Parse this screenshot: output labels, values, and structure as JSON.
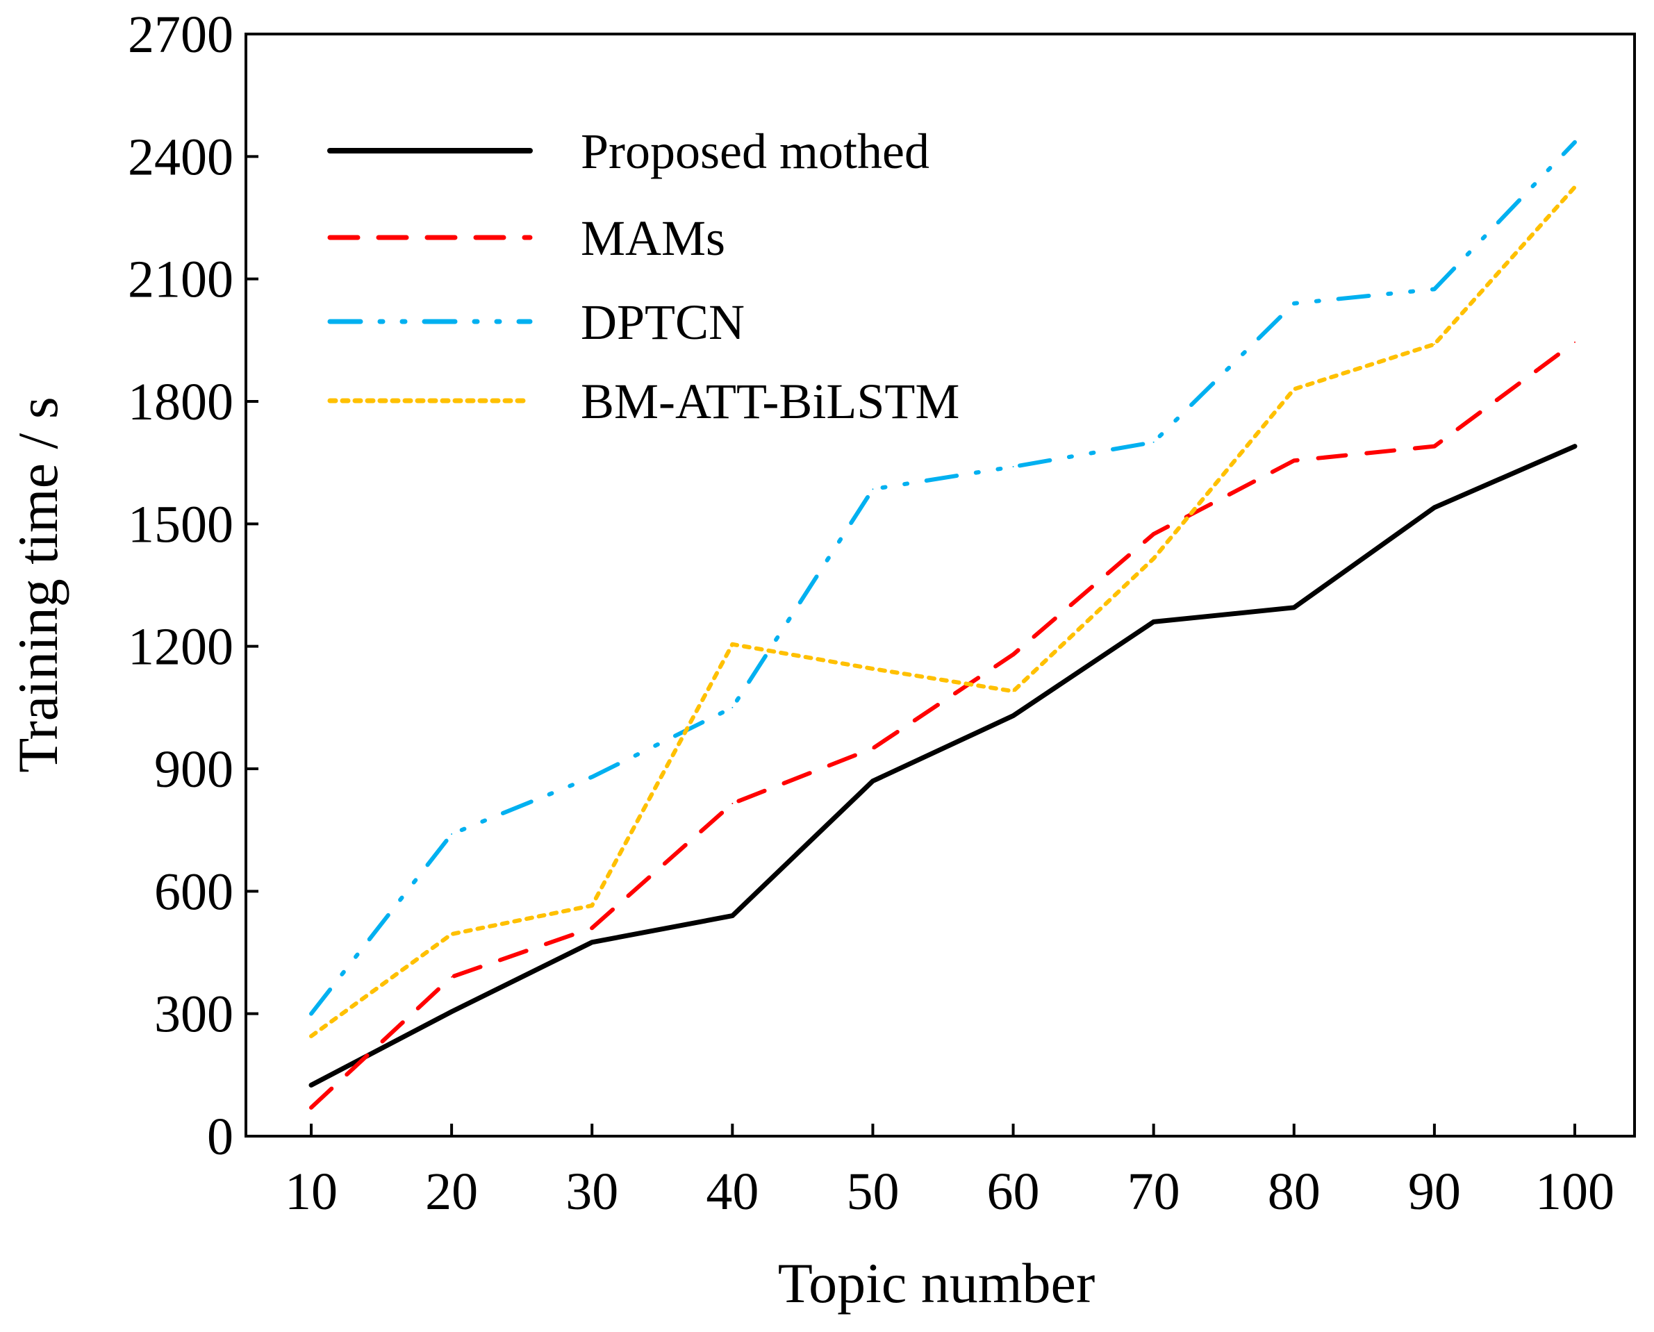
{
  "chart_data": {
    "type": "line",
    "title": "",
    "xlabel": "Topic number",
    "ylabel": "Training time / s",
    "xlim": [
      10,
      100
    ],
    "ylim": [
      0,
      2700
    ],
    "x": [
      10,
      20,
      30,
      40,
      50,
      60,
      70,
      80,
      90,
      100
    ],
    "xticks": [
      "10",
      "20",
      "30",
      "40",
      "50",
      "60",
      "70",
      "80",
      "90",
      "100"
    ],
    "yticks": [
      "0",
      "300",
      "600",
      "900",
      "1200",
      "1500",
      "1800",
      "2100",
      "2400",
      "2700"
    ],
    "grid": false,
    "legend_position": "top-left",
    "series": [
      {
        "name": "Proposed mothed",
        "color": "#000000",
        "style": "solid",
        "values": [
          125,
          305,
          475,
          540,
          870,
          1030,
          1260,
          1295,
          1540,
          1690
        ]
      },
      {
        "name": "MAMs",
        "color": "#ff0000",
        "style": "dash",
        "values": [
          70,
          390,
          510,
          815,
          950,
          1180,
          1475,
          1655,
          1690,
          1945
        ]
      },
      {
        "name": "DPTCN",
        "color": "#00b0f0",
        "style": "dash-dot-dot",
        "values": [
          300,
          740,
          880,
          1050,
          1585,
          1640,
          1700,
          2040,
          2075,
          2435
        ]
      },
      {
        "name": "BM-ATT-BiLSTM",
        "color": "#ffc000",
        "style": "dot",
        "values": [
          245,
          495,
          565,
          1205,
          1145,
          1090,
          1415,
          1830,
          1940,
          2325
        ]
      }
    ]
  }
}
